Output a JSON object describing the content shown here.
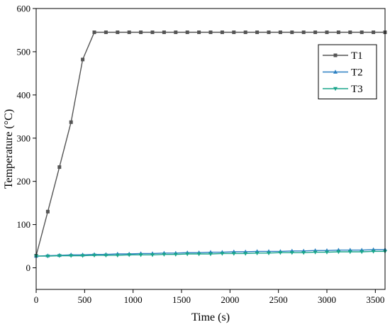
{
  "chart_data": {
    "type": "line",
    "title": "",
    "xlabel": "Time (s)",
    "ylabel": "Temperature (°C)",
    "xlim": [
      0,
      3600
    ],
    "ylim": [
      -50,
      600
    ],
    "xticks": [
      0,
      500,
      1000,
      1500,
      2000,
      2500,
      3000,
      3500
    ],
    "yticks": [
      0,
      100,
      200,
      300,
      400,
      500,
      600
    ],
    "grid": false,
    "legend_position": "top-right",
    "x": [
      0,
      120,
      240,
      360,
      480,
      600,
      720,
      840,
      960,
      1080,
      1200,
      1320,
      1440,
      1560,
      1680,
      1800,
      1920,
      2040,
      2160,
      2280,
      2400,
      2520,
      2640,
      2760,
      2880,
      3000,
      3120,
      3240,
      3360,
      3480,
      3600
    ],
    "series": [
      {
        "name": "T1",
        "color": "#555555",
        "marker": "square",
        "values": [
          28,
          130,
          233,
          337,
          482,
          545,
          545,
          545,
          545,
          545,
          545,
          545,
          545,
          545,
          545,
          545,
          545,
          545,
          545,
          545,
          545,
          545,
          545,
          545,
          545,
          545,
          545,
          545,
          545,
          545,
          545
        ]
      },
      {
        "name": "T2",
        "color": "#2a7fc1",
        "marker": "triangle-up",
        "values": [
          27,
          28,
          29,
          30,
          30,
          31,
          31,
          32,
          32,
          33,
          33,
          34,
          34,
          35,
          35,
          36,
          36,
          37,
          37,
          38,
          38,
          38,
          39,
          39,
          40,
          40,
          41,
          41,
          41,
          42,
          42
        ]
      },
      {
        "name": "T3",
        "color": "#1aa58c",
        "marker": "triangle-down",
        "values": [
          27,
          27,
          28,
          28,
          28,
          29,
          29,
          29,
          30,
          30,
          30,
          31,
          31,
          32,
          32,
          32,
          33,
          33,
          33,
          34,
          34,
          35,
          35,
          35,
          36,
          36,
          37,
          37,
          37,
          38,
          38
        ]
      }
    ]
  }
}
